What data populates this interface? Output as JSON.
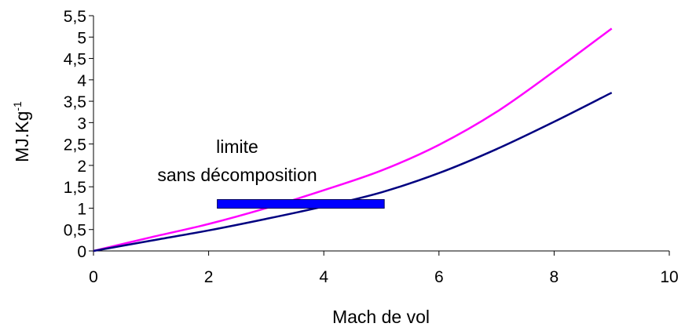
{
  "chart_data": {
    "type": "line",
    "title": "",
    "xlabel": "Mach de vol",
    "ylabel_main": "MJ.Kg",
    "ylabel_sup": "-1",
    "xlim": [
      0,
      10
    ],
    "ylim": [
      0,
      5.5
    ],
    "x_ticks": [
      0,
      2,
      4,
      6,
      8,
      10
    ],
    "x_tick_labels": [
      "0",
      "2",
      "4",
      "6",
      "8",
      "10"
    ],
    "y_ticks": [
      0,
      0.5,
      1,
      1.5,
      2,
      2.5,
      3,
      3.5,
      4,
      4.5,
      5,
      5.5
    ],
    "y_tick_labels": [
      "0",
      "0,5",
      "1",
      "1,5",
      "2",
      "2,5",
      "3",
      "3,5",
      "4",
      "4,5",
      "5",
      "5,5"
    ],
    "grid": false,
    "legend": "none",
    "series": [
      {
        "color": "#ff00ff",
        "x": [
          0,
          1,
          2,
          3,
          4,
          5,
          6,
          7,
          8,
          9
        ],
        "y": [
          0,
          0.32,
          0.63,
          1.0,
          1.42,
          1.88,
          2.48,
          3.25,
          4.2,
          5.2
        ]
      },
      {
        "color": "#000080",
        "x": [
          0,
          1,
          2,
          3,
          4,
          5,
          6,
          7,
          8,
          9
        ],
        "y": [
          0,
          0.24,
          0.48,
          0.75,
          1.04,
          1.37,
          1.82,
          2.38,
          3.02,
          3.7
        ]
      }
    ],
    "annotation": {
      "line1": "limite",
      "line2": "sans décomposition",
      "bar_x": [
        2.15,
        5.05
      ],
      "bar_y": 1.1,
      "bar_color": "#0000ff"
    }
  }
}
